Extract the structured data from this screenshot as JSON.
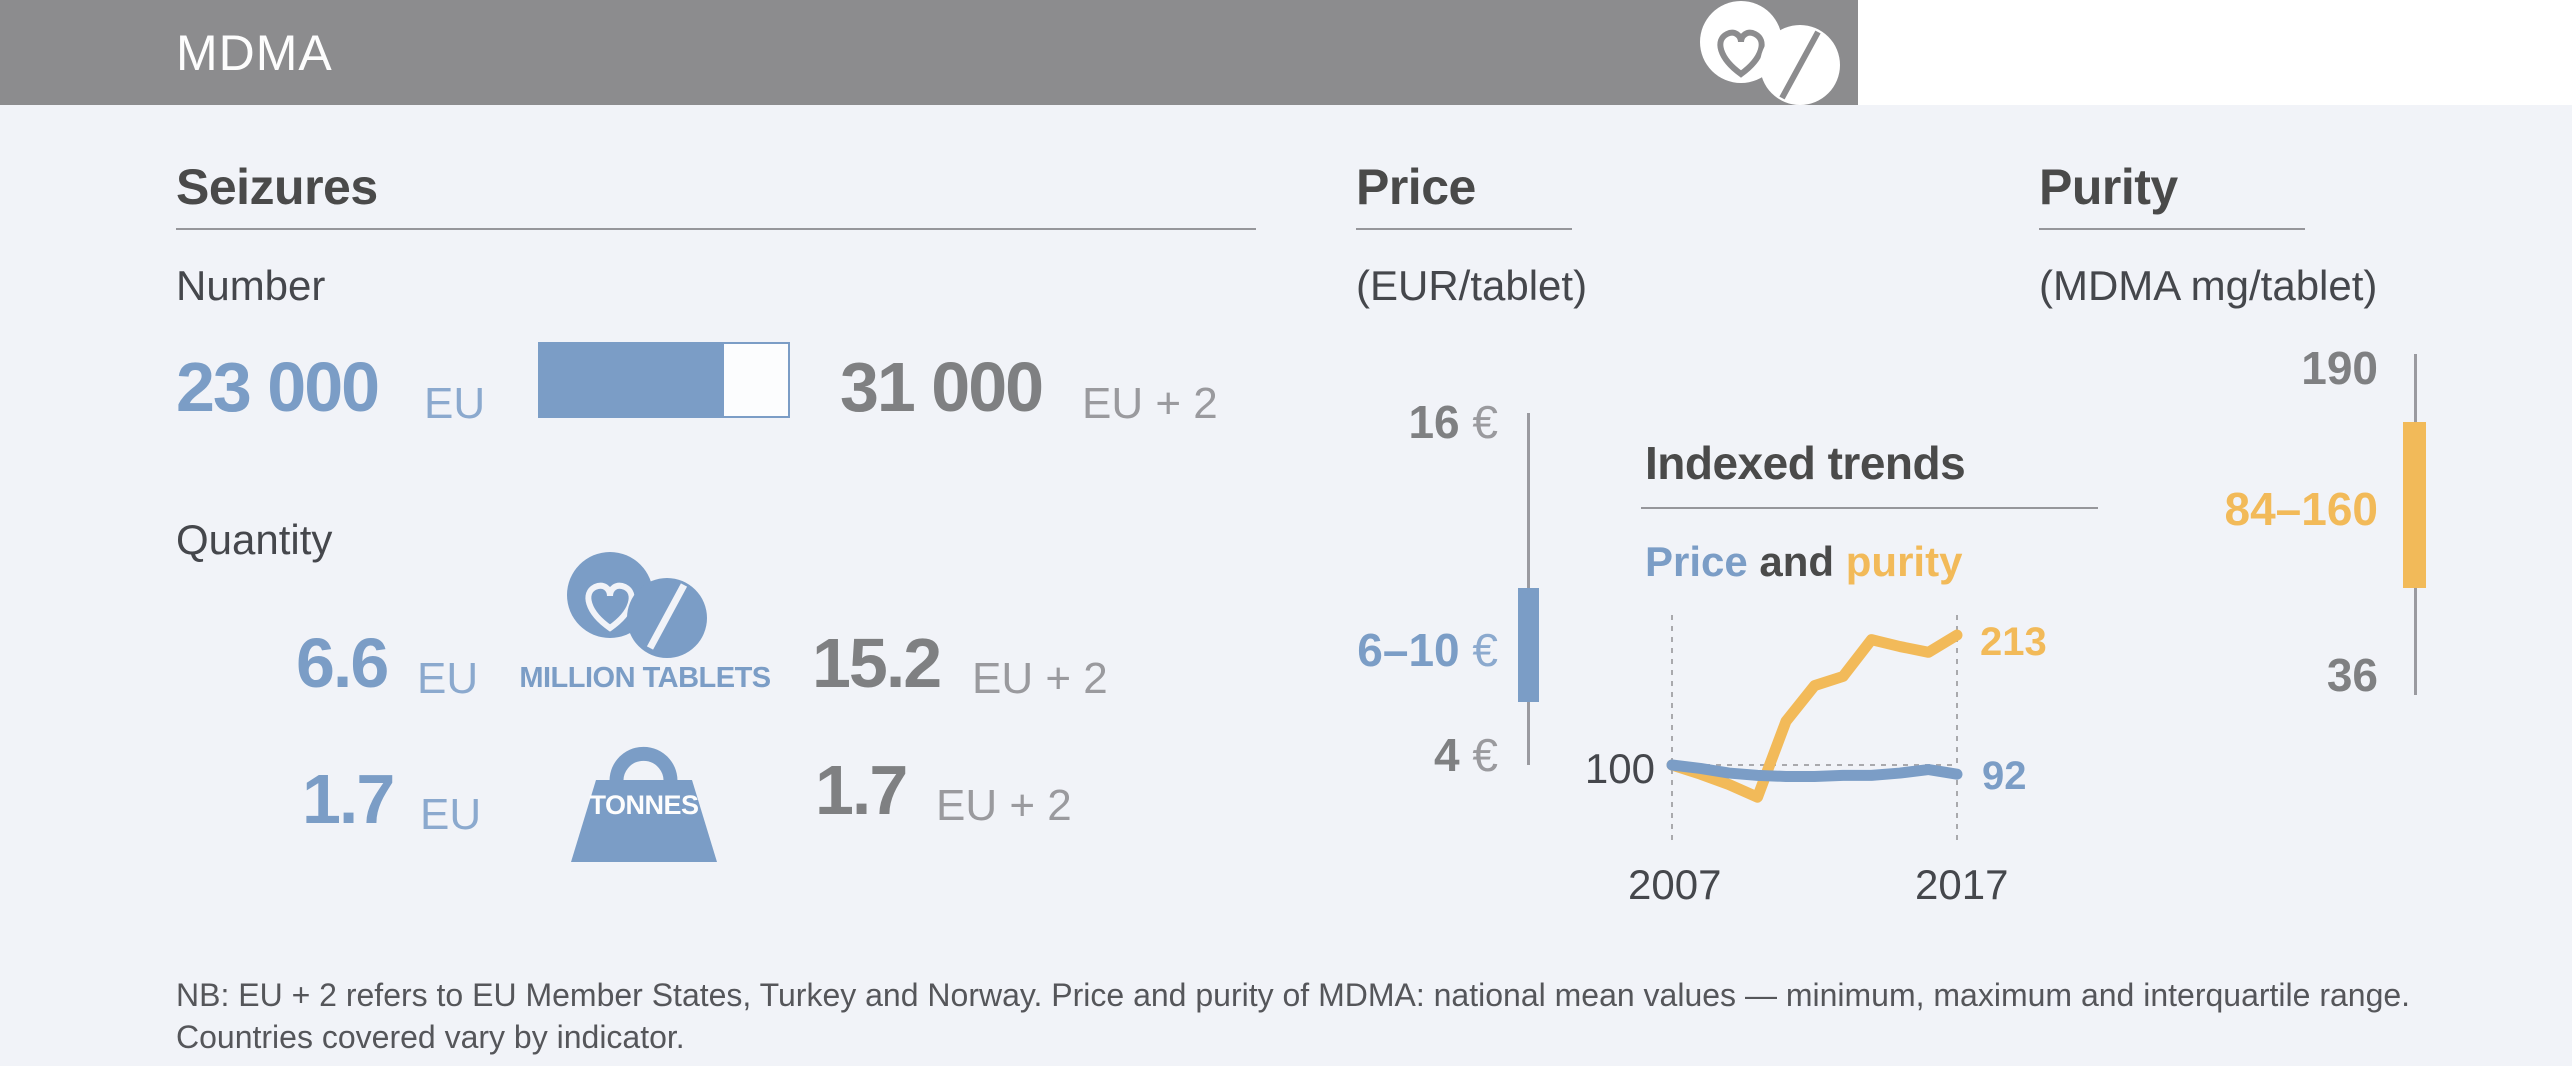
{
  "header": {
    "title": "MDMA"
  },
  "seizures": {
    "heading": "Seizures",
    "number_label": "Number",
    "number": {
      "eu_value": "23 000",
      "eu_unit": "EU",
      "eu2_value": "31 000",
      "eu2_unit": "EU + 2",
      "fill_ratio": 0.742
    },
    "quantity_label": "Quantity",
    "tablets": {
      "eu_value": "6.6",
      "eu_unit": "EU",
      "icon_label": "MILLION TABLETS",
      "eu2_value": "15.2",
      "eu2_unit": "EU + 2"
    },
    "tonnes": {
      "eu_value": "1.7",
      "eu_unit": "EU",
      "icon_label": "TONNES",
      "eu2_value": "1.7",
      "eu2_unit": "EU + 2"
    }
  },
  "price": {
    "heading": "Price",
    "subtitle": "(EUR/tablet)",
    "axis": {
      "max": "16",
      "iqr": "6–10",
      "min": "4",
      "currency": "€"
    }
  },
  "purity": {
    "heading": "Purity",
    "subtitle": "(MDMA mg/tablet)",
    "axis": {
      "max": "190",
      "iqr": "84–160",
      "min": "36"
    }
  },
  "indexed_trends": {
    "heading": "Indexed trends",
    "legend": {
      "price": "Price",
      "and": " and ",
      "purity": "purity"
    },
    "baseline_label": "100",
    "x_start_label": "2007",
    "x_end_label": "2017",
    "purity_end_label": "213",
    "price_end_label": "92"
  },
  "footnote": {
    "line1": "NB: EU + 2 refers to EU Member States, Turkey and Norway. Price and purity of MDMA: national mean values — minimum, maximum and interquartile range.",
    "line2": "Countries covered vary by indicator."
  },
  "colors": {
    "blue": "#7b9dc6",
    "orange": "#f2ba59",
    "header_gray": "#8c8c8e",
    "dark_text": "#4a4a4a",
    "value_gray": "#7f8082",
    "unit_gray": "#9a9a9e",
    "background": "#f1f3f8"
  },
  "chart_data": [
    {
      "id": "price_range",
      "type": "range_bar",
      "title": "Price",
      "subtitle": "(EUR/tablet)",
      "unit": "EUR/tablet",
      "min": 4,
      "max": 16,
      "iqr": [
        6,
        10
      ],
      "orientation": "vertical",
      "color": "#7b9dc6"
    },
    {
      "id": "indexed_trends",
      "type": "line",
      "title": "Indexed trends",
      "subtitle": "Price and purity",
      "baseline": 100,
      "x": [
        2007,
        2008,
        2009,
        2010,
        2011,
        2012,
        2013,
        2014,
        2015,
        2016,
        2017
      ],
      "x_tick_labels": [
        "2007",
        "2017"
      ],
      "series": [
        {
          "name": "purity",
          "color": "#f2ba59",
          "end_label": 213,
          "values": [
            100,
            92,
            83,
            72,
            138,
            169,
            177,
            209,
            203,
            198,
            213
          ]
        },
        {
          "name": "price",
          "color": "#7b9dc6",
          "end_label": 92,
          "values": [
            100,
            97,
            93,
            91,
            90,
            90,
            91,
            91,
            93,
            96,
            92
          ]
        }
      ],
      "grid": "dashed-frame",
      "legend_position": "top"
    },
    {
      "id": "purity_range",
      "type": "range_bar",
      "title": "Purity",
      "subtitle": "(MDMA mg/tablet)",
      "unit": "MDMA mg/tablet",
      "min": 36,
      "max": 190,
      "iqr": [
        84,
        160
      ],
      "orientation": "vertical",
      "color": "#f2ba59"
    }
  ]
}
